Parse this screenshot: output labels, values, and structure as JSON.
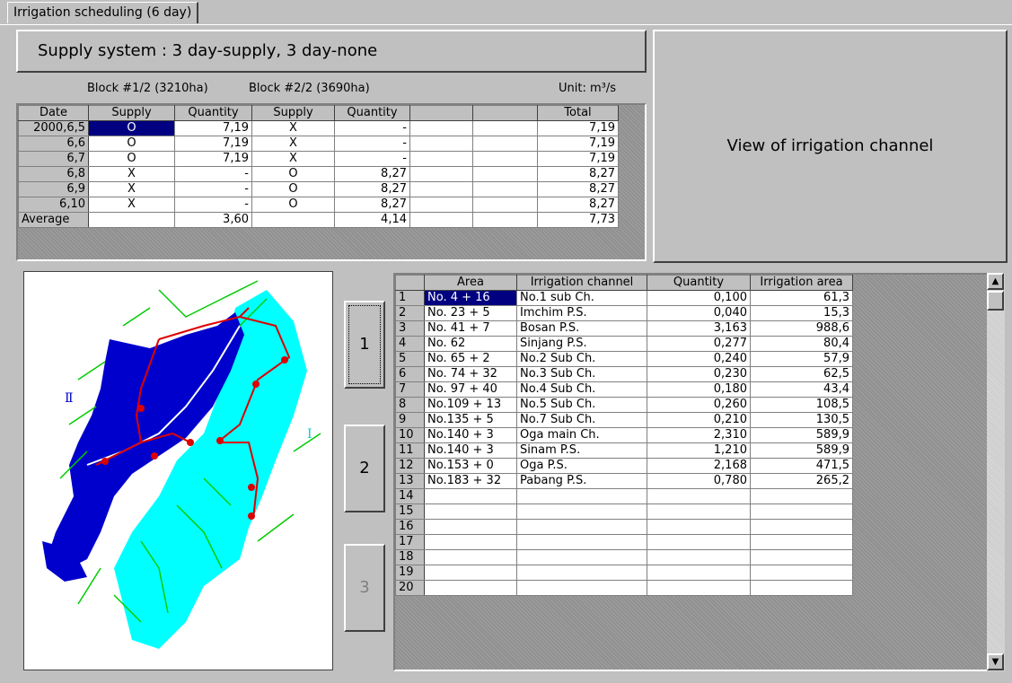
{
  "tab": {
    "label": "Irrigation scheduling (6 day)"
  },
  "supply_button": {
    "label": "Supply  system : 3 day-supply, 3 day-none"
  },
  "view_button": {
    "label": "View of irrigation channel"
  },
  "block_labels": {
    "block1": "Block #1/2 (3210ha)",
    "block2": "Block #2/2 (3690ha)",
    "unit": "Unit: m³/s"
  },
  "schedule": {
    "headers": [
      "Date",
      "Supply",
      "Quantity",
      "Supply",
      "Quantity",
      "",
      "",
      "Total"
    ],
    "rows": [
      {
        "date": "2000,6,5",
        "s1": "O",
        "q1": "7,19",
        "s2": "X",
        "q2": "-",
        "total": "7,19"
      },
      {
        "date": "6,6",
        "s1": "O",
        "q1": "7,19",
        "s2": "X",
        "q2": "-",
        "total": "7,19"
      },
      {
        "date": "6,7",
        "s1": "O",
        "q1": "7,19",
        "s2": "X",
        "q2": "-",
        "total": "7,19"
      },
      {
        "date": "6,8",
        "s1": "X",
        "q1": "-",
        "s2": "O",
        "q2": "8,27",
        "total": "8,27"
      },
      {
        "date": "6,9",
        "s1": "X",
        "q1": "-",
        "s2": "O",
        "q2": "8,27",
        "total": "8,27"
      },
      {
        "date": "6,10",
        "s1": "X",
        "q1": "-",
        "s2": "O",
        "q2": "8,27",
        "total": "8,27"
      }
    ],
    "average": {
      "date": "Average",
      "s1": "",
      "q1": "3,60",
      "s2": "",
      "q2": "4,14",
      "total": "7,73"
    }
  },
  "map": {
    "label_left": "Ⅱ",
    "label_right": "Ⅰ",
    "colors": {
      "block2": "#0000cc",
      "block1": "#00ffff",
      "river": "#00cc00",
      "channel": "#dd0000"
    }
  },
  "block_buttons": [
    "1",
    "2",
    "3"
  ],
  "channels": {
    "headers": [
      "",
      "Area",
      "Irrigation channel",
      "Quantity",
      "Irrigation area"
    ],
    "rows": [
      {
        "n": "1",
        "area": "No.  4 + 16",
        "channel": "No.1 sub Ch.",
        "qty": "0,100",
        "irr": "61,3"
      },
      {
        "n": "2",
        "area": "No.  23 +  5",
        "channel": "Imchim P.S.",
        "qty": "0,040",
        "irr": "15,3"
      },
      {
        "n": "3",
        "area": "No.  41 +  7",
        "channel": "Bosan P.S.",
        "qty": "3,163",
        "irr": "988,6"
      },
      {
        "n": "4",
        "area": "No.  62",
        "channel": "Sinjang P.S.",
        "qty": "0,277",
        "irr": "80,4"
      },
      {
        "n": "5",
        "area": "No.  65 +  2",
        "channel": "No.2 Sub Ch.",
        "qty": "0,240",
        "irr": "57,9"
      },
      {
        "n": "6",
        "area": "No.  74 + 32",
        "channel": "No.3 Sub Ch.",
        "qty": "0,230",
        "irr": "62,5"
      },
      {
        "n": "7",
        "area": "No.  97 + 40",
        "channel": "No.4 Sub Ch.",
        "qty": "0,180",
        "irr": "43,4"
      },
      {
        "n": "8",
        "area": "No.109 + 13",
        "channel": "No.5 Sub Ch.",
        "qty": "0,260",
        "irr": "108,5"
      },
      {
        "n": "9",
        "area": "No.135 +  5",
        "channel": "No.7 Sub Ch.",
        "qty": "0,210",
        "irr": "130,5"
      },
      {
        "n": "10",
        "area": "No.140 +  3",
        "channel": "Oga main Ch.",
        "qty": "2,310",
        "irr": "589,9"
      },
      {
        "n": "11",
        "area": "No.140 +  3",
        "channel": "Sinam P.S.",
        "qty": "1,210",
        "irr": "589,9"
      },
      {
        "n": "12",
        "area": "No.153 +  0",
        "channel": "Oga P.S.",
        "qty": "2,168",
        "irr": "471,5"
      },
      {
        "n": "13",
        "area": "No.183 + 32",
        "channel": "Pabang P.S.",
        "qty": "0,780",
        "irr": "265,2"
      },
      {
        "n": "14",
        "area": "",
        "channel": "",
        "qty": "",
        "irr": ""
      },
      {
        "n": "15",
        "area": "",
        "channel": "",
        "qty": "",
        "irr": ""
      },
      {
        "n": "16",
        "area": "",
        "channel": "",
        "qty": "",
        "irr": ""
      },
      {
        "n": "17",
        "area": "",
        "channel": "",
        "qty": "",
        "irr": ""
      },
      {
        "n": "18",
        "area": "",
        "channel": "",
        "qty": "",
        "irr": ""
      },
      {
        "n": "19",
        "area": "",
        "channel": "",
        "qty": "",
        "irr": ""
      },
      {
        "n": "20",
        "area": "",
        "channel": "",
        "qty": "",
        "irr": ""
      }
    ]
  },
  "scrollbar": {
    "up_icon": "arrow-up-icon",
    "down_icon": "arrow-down-icon"
  }
}
